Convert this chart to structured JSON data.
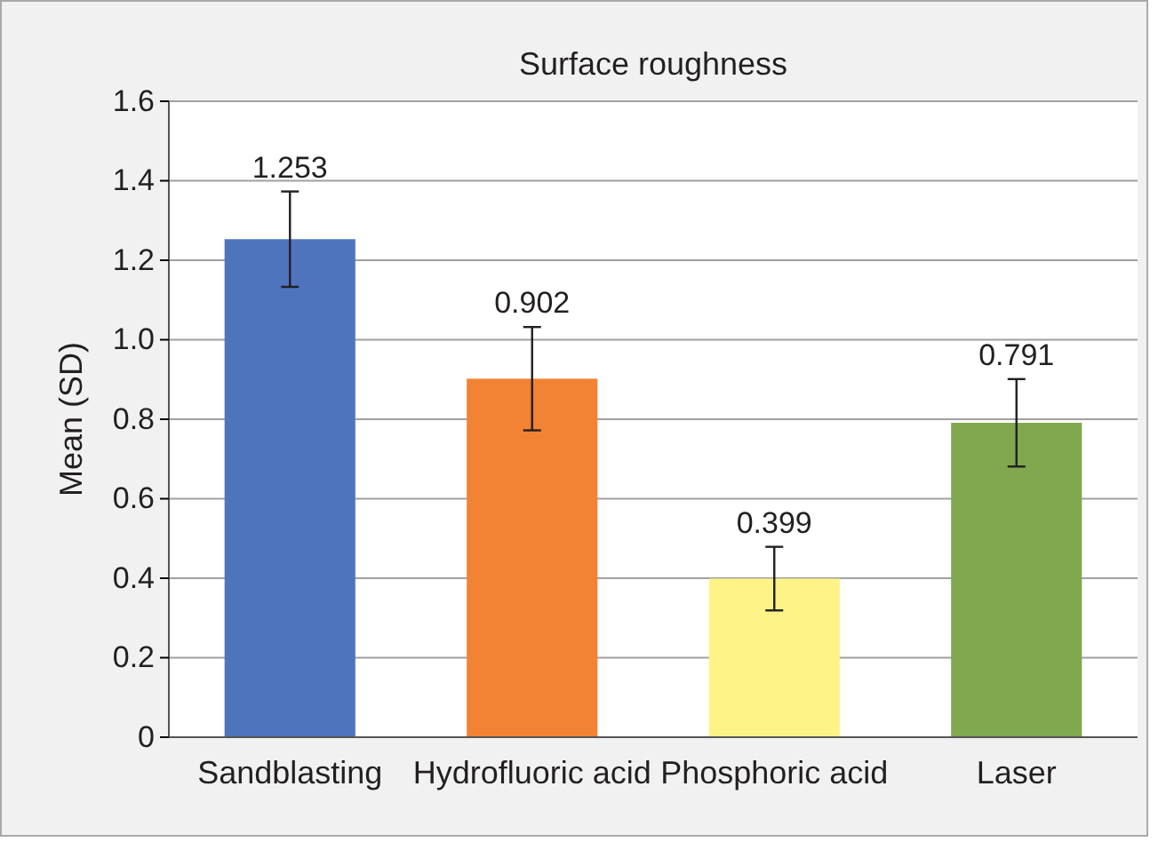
{
  "chart_data": {
    "type": "bar",
    "title": "Surface roughness",
    "ylabel": "Mean (SD)",
    "categories": [
      "Sandblasting",
      "Hydrofluoric acid",
      "Phosphoric acid",
      "Laser"
    ],
    "values": [
      1.253,
      0.902,
      0.399,
      0.791
    ],
    "colors": [
      "#4f74be",
      "#f28234",
      "#fef386",
      "#7fa84f"
    ],
    "errors": [
      0.12,
      0.13,
      0.08,
      0.11
    ],
    "ylim": [
      0,
      1.6
    ],
    "yticks": [
      0,
      {
        "value": 0.2,
        "label": "0.2"
      },
      {
        "value": 0.4,
        "label": "0.4"
      },
      {
        "value": 0.6,
        "label": "0.6"
      },
      {
        "value": 0.8,
        "label": "0.8"
      },
      {
        "value": 1,
        "label": "1.0"
      },
      {
        "value": 1.2,
        "label": "1.2"
      },
      {
        "value": 1.4,
        "label": "1.4"
      },
      {
        "value": 1.6,
        "label": "1.6"
      }
    ],
    "grid": "y",
    "data_labels": true
  }
}
